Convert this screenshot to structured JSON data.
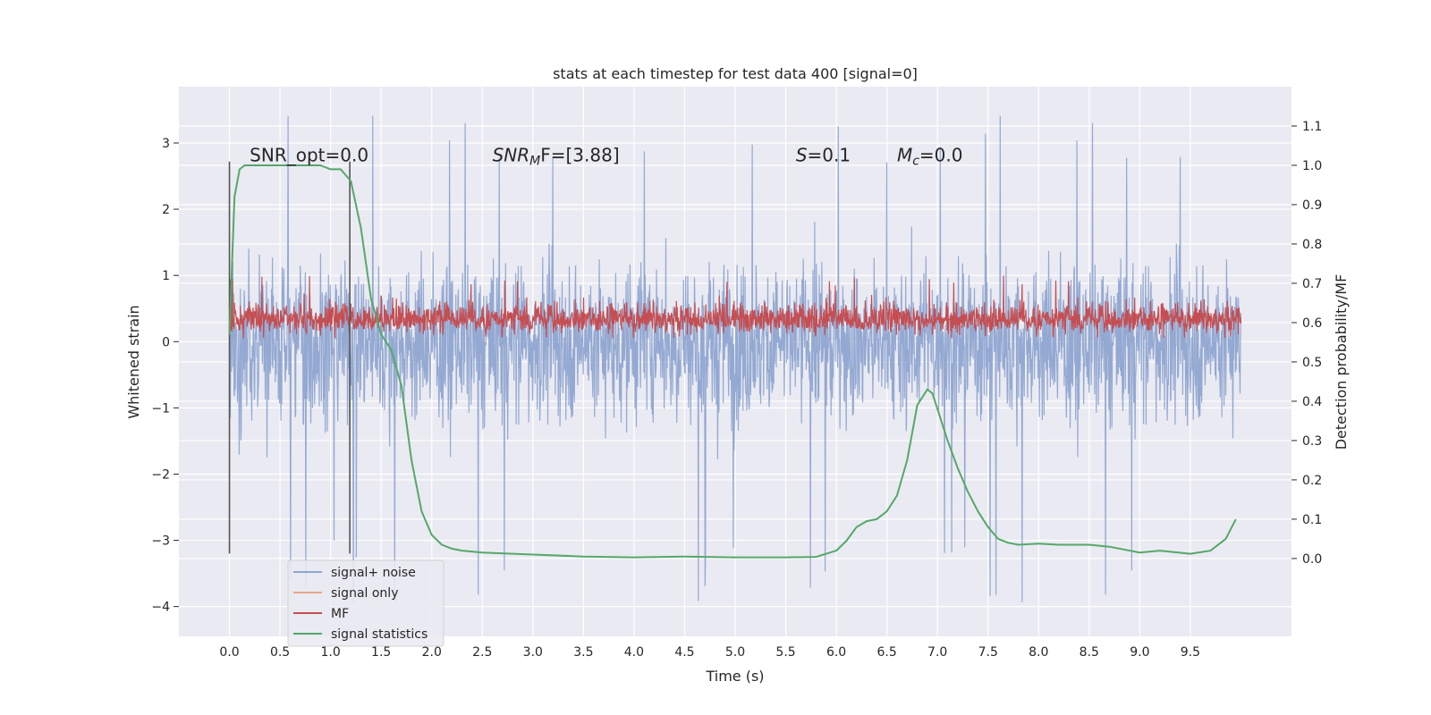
{
  "chart_data": {
    "type": "line",
    "title": "stats at each timestep for test data 400 [signal=0]",
    "xlabel": "Time (s)",
    "ylabel": "Whitened strain",
    "y2label": "Detection probability/MF",
    "xlim": [
      -0.5,
      10.5
    ],
    "ylim": [
      -4.45,
      3.85
    ],
    "y2lim": [
      -0.198,
      1.2
    ],
    "x_ticks": [
      "0.0",
      "0.5",
      "1.0",
      "1.5",
      "2.0",
      "2.5",
      "3.0",
      "3.5",
      "4.0",
      "4.5",
      "5.0",
      "5.5",
      "6.0",
      "6.5",
      "7.0",
      "7.5",
      "8.0",
      "8.5",
      "9.0",
      "9.5"
    ],
    "y_ticks": [
      "3",
      "2",
      "1",
      "0",
      "−1",
      "−2",
      "−3",
      "−4"
    ],
    "y2_ticks": [
      "1.1",
      "1.0",
      "0.9",
      "0.8",
      "0.7",
      "0.6",
      "0.5",
      "0.4",
      "0.3",
      "0.2",
      "0.1",
      "0.0"
    ],
    "grid": true,
    "legend_position": "lower-left",
    "colors": {
      "signal_noise": "#8fa5d0",
      "signal_only": "#e8a78a",
      "mf": "#c44e52",
      "signal_statistics": "#55a868",
      "vline": "#555555",
      "background": "#eaeaf2"
    },
    "annotations": [
      {
        "id": "snr-opt",
        "text": "SNR_opt=0.0",
        "x": 0.2,
        "y": 2.75
      },
      {
        "id": "snr-mf",
        "text": "SNR",
        "sub": "M",
        "tail": "F=[3.88]",
        "x": 2.6,
        "y": 2.75
      },
      {
        "id": "s",
        "text": "S",
        "tail": "=0.1",
        "x": 5.6,
        "y": 2.75
      },
      {
        "id": "mc",
        "text": "M",
        "sub": "c",
        "tail": "=0.0",
        "x": 6.6,
        "y": 2.75
      }
    ],
    "vlines": [
      {
        "x": 0.0,
        "ymin": -3.2,
        "ymax": 2.72
      },
      {
        "x": 1.19,
        "ymin": -3.2,
        "ymax": 2.72
      }
    ],
    "noise_series": {
      "name": "signal+ noise",
      "x_range": [
        0.0,
        10.0
      ],
      "n_points": 2400,
      "band": [
        -2.0,
        2.1
      ],
      "spike_max": 3.5,
      "spike_min": -4.0,
      "mean": 0.0
    },
    "mf_series": {
      "name": "MF",
      "x_range": [
        0.0,
        10.0
      ],
      "n_points": 2400,
      "center": 0.33,
      "band": [
        0.05,
        0.9
      ],
      "spike_max": 1.0
    },
    "signal_only_series": {
      "name": "signal only",
      "values": []
    },
    "signal_statistics": {
      "name": "signal statistics",
      "x": [
        0.0,
        0.05,
        0.1,
        0.15,
        0.2,
        0.3,
        0.5,
        0.7,
        0.9,
        1.0,
        1.1,
        1.2,
        1.3,
        1.4,
        1.5,
        1.6,
        1.7,
        1.8,
        1.9,
        2.0,
        2.1,
        2.2,
        2.3,
        2.5,
        3.0,
        3.5,
        4.0,
        4.5,
        5.0,
        5.5,
        5.8,
        6.0,
        6.1,
        6.2,
        6.3,
        6.4,
        6.5,
        6.6,
        6.7,
        6.8,
        6.9,
        6.95,
        7.0,
        7.1,
        7.2,
        7.3,
        7.4,
        7.5,
        7.6,
        7.7,
        7.8,
        8.0,
        8.2,
        8.5,
        8.7,
        9.0,
        9.2,
        9.5,
        9.7,
        9.85,
        9.95
      ],
      "values": [
        0.57,
        0.92,
        0.99,
        1.0,
        1.0,
        1.0,
        1.0,
        1.0,
        1.0,
        0.99,
        0.99,
        0.96,
        0.84,
        0.66,
        0.57,
        0.53,
        0.44,
        0.25,
        0.12,
        0.06,
        0.035,
        0.025,
        0.02,
        0.015,
        0.01,
        0.005,
        0.003,
        0.005,
        0.003,
        0.003,
        0.004,
        0.02,
        0.045,
        0.08,
        0.095,
        0.1,
        0.12,
        0.16,
        0.25,
        0.39,
        0.43,
        0.42,
        0.38,
        0.3,
        0.23,
        0.17,
        0.12,
        0.08,
        0.05,
        0.04,
        0.035,
        0.038,
        0.035,
        0.035,
        0.03,
        0.015,
        0.02,
        0.012,
        0.02,
        0.05,
        0.1
      ]
    }
  }
}
